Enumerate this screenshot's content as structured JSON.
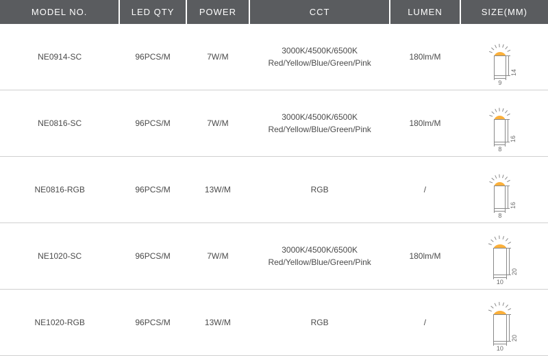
{
  "columns": [
    {
      "key": "model",
      "label": "MODEL NO."
    },
    {
      "key": "led",
      "label": "LED QTY"
    },
    {
      "key": "power",
      "label": "POWER"
    },
    {
      "key": "cct",
      "label": "CCT"
    },
    {
      "key": "lumen",
      "label": "LUMEN"
    },
    {
      "key": "size",
      "label": "SIZE(MM)"
    }
  ],
  "rows": [
    {
      "model": "NE0914-SC",
      "led": "96PCS/M",
      "power": "7W/M",
      "cct_line1": "3000K/4500K/6500K",
      "cct_line2": "Red/Yellow/Blue/Green/Pink",
      "lumen": "180lm/M",
      "size": {
        "w": 9,
        "h": 14,
        "rect_w": 18,
        "rect_h": 30,
        "glow_color": "#fbb03b"
      }
    },
    {
      "model": "NE0816-SC",
      "led": "96PCS/M",
      "power": "7W/M",
      "cct_line1": "3000K/4500K/6500K",
      "cct_line2": "Red/Yellow/Blue/Green/Pink",
      "lumen": "180lm/M",
      "size": {
        "w": 8,
        "h": 16,
        "rect_w": 17,
        "rect_h": 34,
        "glow_color": "#fbb03b"
      }
    },
    {
      "model": "NE0816-RGB",
      "led": "96PCS/M",
      "power": "13W/M",
      "cct_line1": "RGB",
      "cct_line2": "",
      "lumen": "/",
      "size": {
        "w": 8,
        "h": 16,
        "rect_w": 17,
        "rect_h": 34,
        "glow_color": "#fbb03b"
      }
    },
    {
      "model": "NE1020-SC",
      "led": "96PCS/M",
      "power": "7W/M",
      "cct_line1": "3000K/4500K/6500K",
      "cct_line2": "Red/Yellow/Blue/Green/Pink",
      "lumen": "180lm/M",
      "size": {
        "w": 10,
        "h": 20,
        "rect_w": 20,
        "rect_h": 40,
        "glow_color": "#fbb03b"
      }
    },
    {
      "model": "NE1020-RGB",
      "led": "96PCS/M",
      "power": "13W/M",
      "cct_line1": "RGB",
      "cct_line2": "",
      "lumen": "/",
      "size": {
        "w": 10,
        "h": 20,
        "rect_w": 20,
        "rect_h": 40,
        "glow_color": "#fbb03b"
      }
    }
  ],
  "style": {
    "header_bg": "#5a5c5f",
    "header_fg": "#ffffff",
    "row_border": "#cfcfcf",
    "text_color": "#4a4a4a",
    "glow_color": "#fbb03b",
    "line_color": "#888888",
    "font_size_header": 13,
    "font_size_body": 12,
    "font_size_dim": 9
  }
}
